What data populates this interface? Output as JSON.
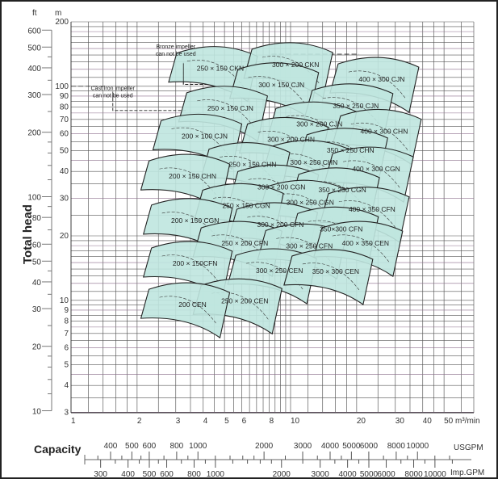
{
  "chart_data": {
    "type": "area",
    "ylabel": "Total head",
    "y_units": {
      "left": "ft",
      "right": "m"
    },
    "x_units": "m³/min",
    "xscale": "log",
    "yscale": "log",
    "xlim": [
      1,
      68
    ],
    "ylim": [
      3,
      200
    ],
    "grid": true,
    "x_ticks": [
      1,
      2,
      3,
      4,
      5,
      6,
      8,
      10,
      20,
      30,
      40,
      50
    ],
    "x_tick_labels": [
      "1",
      "2",
      "3",
      "4",
      "5",
      "6",
      "8",
      "10",
      "20",
      "30",
      "40",
      "50 m³/min"
    ],
    "m_ticks": [
      200,
      100,
      90,
      80,
      70,
      60,
      50,
      40,
      30,
      20,
      10,
      9,
      8,
      7,
      6,
      5,
      4,
      3
    ],
    "ft_ticks": [
      600,
      500,
      400,
      300,
      200,
      100,
      80,
      60,
      50,
      40,
      30,
      20,
      10
    ],
    "capacity": {
      "label": "Capacity",
      "usgpm_label": "USGPM",
      "impgpm_label": "Imp.GPM",
      "usgpm_ticks": [
        400,
        500,
        600,
        800,
        1000,
        2000,
        3000,
        4000,
        5000,
        6000,
        8000,
        10000
      ],
      "impgpm_ticks": [
        300,
        400,
        500,
        600,
        800,
        1000,
        2000,
        3000,
        4000,
        5000,
        6000,
        8000,
        10000
      ]
    },
    "regions": [
      {
        "label": "250 × 150 CKN",
        "flow": 4.95,
        "head": 118
      },
      {
        "label": "300 × 200 CKN",
        "flow": 10.9,
        "head": 123
      },
      {
        "label": "400 × 300 CJN",
        "flow": 26.9,
        "head": 105
      },
      {
        "label": "300 × 150 CJN",
        "flow": 9.4,
        "head": 99
      },
      {
        "label": "250 × 150 CJN",
        "flow": 5.5,
        "head": 77
      },
      {
        "label": "350 × 250 CJN",
        "flow": 20.5,
        "head": 79
      },
      {
        "label": "300 × 200 CJN",
        "flow": 14.0,
        "head": 65
      },
      {
        "label": "200 × 100 CJN",
        "flow": 4.2,
        "head": 57
      },
      {
        "label": "400 × 300 CHN",
        "flow": 27.6,
        "head": 60
      },
      {
        "label": "300 × 200 CHN",
        "flow": 10.4,
        "head": 55
      },
      {
        "label": "350 × 250 CHN",
        "flow": 19.4,
        "head": 49
      },
      {
        "label": "300 × 250 CHN",
        "flow": 13.2,
        "head": 43
      },
      {
        "label": "250 × 150 CHN",
        "flow": 6.95,
        "head": 42
      },
      {
        "label": "400 × 300 CGN",
        "flow": 25.4,
        "head": 40
      },
      {
        "label": "200 × 150 CHN",
        "flow": 3.7,
        "head": 37
      },
      {
        "label": "300 × 200 CGN",
        "flow": 9.4,
        "head": 33
      },
      {
        "label": "350 × 250 CGN",
        "flow": 17.8,
        "head": 32
      },
      {
        "label": "300 × 250 CGN",
        "flow": 12.7,
        "head": 28
      },
      {
        "label": "250 × 150 CGN",
        "flow": 6.5,
        "head": 27
      },
      {
        "label": "400 × 350 CFN",
        "flow": 24.3,
        "head": 26
      },
      {
        "label": "200 × 150 CGN",
        "flow": 3.8,
        "head": 23
      },
      {
        "label": "300 × 200 CFN",
        "flow": 9.3,
        "head": 22
      },
      {
        "label": "350×300 CFN",
        "flow": 17.6,
        "head": 21
      },
      {
        "label": "250 × 200 CFN",
        "flow": 6.4,
        "head": 18
      },
      {
        "label": "300 × 250 CFN",
        "flow": 12.6,
        "head": 17.5
      },
      {
        "label": "400 × 350 CEN",
        "flow": 22.7,
        "head": 18
      },
      {
        "label": "200 × 150CFN",
        "flow": 3.8,
        "head": 14.5
      },
      {
        "label": "300 × 250 CEN",
        "flow": 9.2,
        "head": 13.4
      },
      {
        "label": "350 × 300 CEN",
        "flow": 16.6,
        "head": 13.3
      },
      {
        "label": "250 × 200 CEN",
        "flow": 6.4,
        "head": 9.7
      },
      {
        "label": "200 CEN",
        "flow": 3.7,
        "head": 9.3
      }
    ],
    "annotations": [
      {
        "text": [
          "Cast iron impeller",
          "can not be used"
        ],
        "flow": 1.55,
        "head": 96
      },
      {
        "text": [
          "Bronze impeller",
          "can not be used"
        ],
        "flow": 3.0,
        "head": 150
      }
    ],
    "fill_color": "#bfe5df",
    "line_color": "#222222"
  }
}
